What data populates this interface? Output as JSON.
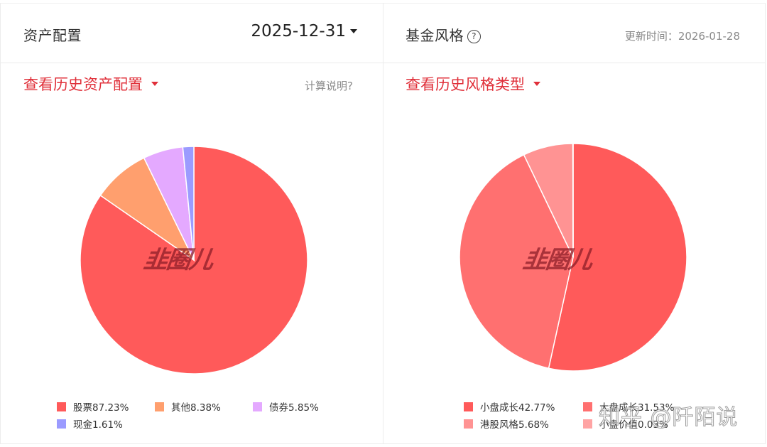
{
  "asset_panel": {
    "title": "资产配置",
    "date": "2025-12-31",
    "history_link": "查看历史资产配置",
    "calc_note": "计算说明?",
    "watermark": "韭圈儿"
  },
  "style_panel": {
    "title": "基金风格",
    "help_icon": "?",
    "update_label": "更新时间：2026-01-28",
    "history_link": "查看历史风格类型",
    "watermark": "韭圈儿"
  },
  "colors": {
    "accent_red": "#e0303a",
    "border": "#ececec"
  },
  "overlay_watermark": "知乎 @阡陌说",
  "chart_data": [
    {
      "type": "pie",
      "title": "资产配置",
      "date": "2025-12-31",
      "start_angle": "12 o'clock, clockwise",
      "categories": [
        "股票",
        "其他",
        "债券",
        "现金"
      ],
      "values": [
        87.23,
        8.38,
        5.85,
        1.61
      ],
      "colors": [
        "#ff5a5a",
        "#ff9f6e",
        "#e4a9ff",
        "#9b9bff"
      ],
      "labels": [
        "股票87.23%",
        "其他8.38%",
        "债券5.85%",
        "现金1.61%"
      ],
      "legend_position": "bottom",
      "center": [
        273,
        362
      ],
      "radius": 160
    },
    {
      "type": "pie",
      "title": "基金风格",
      "updated": "2026-01-28",
      "start_angle": "12 o'clock, clockwise",
      "categories": [
        "小盘成长",
        "大盘成长",
        "港股风格",
        "小盘价值"
      ],
      "values": [
        42.77,
        31.53,
        5.68,
        0.03
      ],
      "colors": [
        "#ff5a5a",
        "#ff7070",
        "#ff9393",
        "#ffa4a4"
      ],
      "labels": [
        "小盘成长42.77%",
        "大盘成长31.53%",
        "港股风格5.68%",
        "小盘价值0.03%"
      ],
      "legend_position": "bottom",
      "center": [
        267,
        358
      ],
      "radius": 160
    }
  ]
}
